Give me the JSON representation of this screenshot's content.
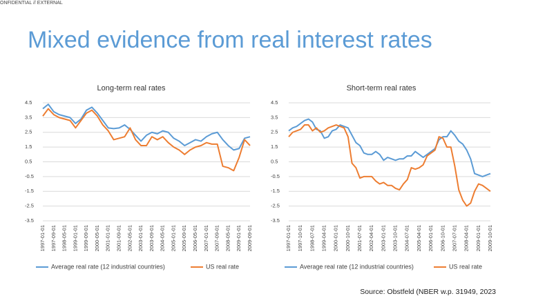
{
  "header": "ONFIDENTIAL // EXTERNAL",
  "title": "Mixed evidence from real interest rates",
  "source": "Source: Obstfeld (NBER w.p. 31949, 2023",
  "chart_data": [
    {
      "type": "line",
      "title": "Long-term real rates",
      "categories": [
        "1997-01-01",
        null,
        "1997-09-01",
        null,
        "1998-05-01",
        null,
        "1999-01-01",
        null,
        "1999-09-01",
        null,
        "2000-05-01",
        null,
        "2001-01-01",
        null,
        "2001-09-01",
        null,
        "2002-05-01",
        null,
        "2003-01-01",
        null,
        "2003-09-01",
        null,
        "2004-05-01",
        null,
        "2005-01-01",
        null,
        "2005-09-01",
        null,
        "2006-05-01",
        null,
        "2007-01-01",
        null,
        "2007-09-01",
        null,
        "2008-05-01",
        null,
        "2009-01-01",
        null,
        "2009-09-01"
      ],
      "series": [
        {
          "name": "Average real rate (12 industrial countries)",
          "color": "#5b9bd5",
          "values": [
            4.1,
            4.4,
            3.9,
            3.7,
            3.6,
            3.5,
            3.1,
            3.4,
            4.0,
            4.2,
            3.8,
            3.3,
            2.8,
            2.75,
            2.8,
            3.0,
            2.7,
            2.3,
            1.9,
            2.3,
            2.5,
            2.4,
            2.6,
            2.5,
            2.1,
            1.9,
            1.6,
            1.8,
            2.0,
            1.9,
            2.2,
            2.4,
            2.5,
            2.0,
            1.6,
            1.3,
            1.4,
            2.1,
            2.2
          ]
        },
        {
          "name": "US real rate",
          "color": "#ed7d31",
          "values": [
            3.6,
            4.1,
            3.7,
            3.5,
            3.4,
            3.3,
            2.8,
            3.3,
            3.8,
            4.0,
            3.6,
            3.0,
            2.6,
            2.0,
            2.1,
            2.2,
            2.8,
            2.0,
            1.6,
            1.6,
            2.2,
            2.0,
            2.2,
            1.8,
            1.5,
            1.3,
            1.0,
            1.3,
            1.5,
            1.6,
            1.8,
            1.7,
            1.7,
            0.2,
            0.1,
            -0.1,
            0.8,
            2.0,
            1.6
          ]
        }
      ],
      "ylim": [
        -3.5,
        4.5
      ],
      "yticks": [
        4.5,
        3.5,
        2.5,
        1.5,
        0.5,
        -0.5,
        -1.5,
        -2.5,
        -3.5
      ],
      "grid": true,
      "legend": "bottom"
    },
    {
      "type": "line",
      "title": "Short-term real rates",
      "categories": [
        "1997-01-01",
        null,
        null,
        "1997-10-01",
        null,
        null,
        "1998-07-01",
        null,
        null,
        "1999-04-01",
        null,
        null,
        "2000-01-01",
        null,
        null,
        "2000-10-01",
        null,
        null,
        "2001-07-01",
        null,
        null,
        "2002-04-01",
        null,
        null,
        "2003-01-01",
        null,
        null,
        "2003-10-01",
        null,
        null,
        "2004-07-01",
        null,
        null,
        "2005-04-01",
        null,
        null,
        "2006-01-01",
        null,
        null,
        "2006-10-01",
        null,
        null,
        "2007-07-01",
        null,
        null,
        "2008-04-01",
        null,
        null,
        "2009-01-01",
        null,
        null,
        "2009-10-01"
      ],
      "series": [
        {
          "name": "Average real rate (12 industrial countries)",
          "color": "#5b9bd5",
          "values": [
            2.6,
            2.8,
            2.9,
            3.1,
            3.3,
            3.4,
            3.2,
            2.7,
            2.6,
            2.1,
            2.2,
            2.6,
            2.7,
            3.0,
            2.9,
            2.8,
            2.3,
            1.8,
            1.6,
            1.1,
            1.0,
            1.0,
            1.2,
            1.0,
            0.6,
            0.8,
            0.7,
            0.6,
            0.7,
            0.7,
            0.9,
            0.9,
            1.2,
            1.0,
            0.8,
            1.0,
            1.2,
            1.4,
            2.0,
            2.2,
            2.2,
            2.6,
            2.3,
            1.9,
            1.7,
            1.3,
            0.7,
            -0.3,
            -0.4,
            -0.5,
            -0.4,
            -0.3
          ]
        },
        {
          "name": "US real rate",
          "color": "#ed7d31",
          "values": [
            2.2,
            2.5,
            2.6,
            2.7,
            3.0,
            3.0,
            2.6,
            2.8,
            2.5,
            2.6,
            2.8,
            2.9,
            3.0,
            2.9,
            2.8,
            2.2,
            0.4,
            0.1,
            -0.6,
            -0.5,
            -0.5,
            -0.5,
            -0.8,
            -1.0,
            -0.9,
            -1.1,
            -1.1,
            -1.3,
            -1.4,
            -1.0,
            -0.7,
            0.1,
            0.0,
            0.1,
            0.3,
            0.9,
            1.1,
            1.3,
            2.2,
            2.1,
            1.5,
            1.5,
            0.2,
            -1.4,
            -2.1,
            -2.5,
            -2.3,
            -1.5,
            -1.0,
            -1.1,
            -1.3,
            -1.5
          ]
        }
      ],
      "ylim": [
        -3.5,
        4.5
      ],
      "yticks": [
        4.5,
        3.5,
        2.5,
        1.5,
        0.5,
        -0.5,
        -1.5,
        -2.5,
        -3.5
      ],
      "grid": true,
      "legend": "bottom"
    }
  ]
}
